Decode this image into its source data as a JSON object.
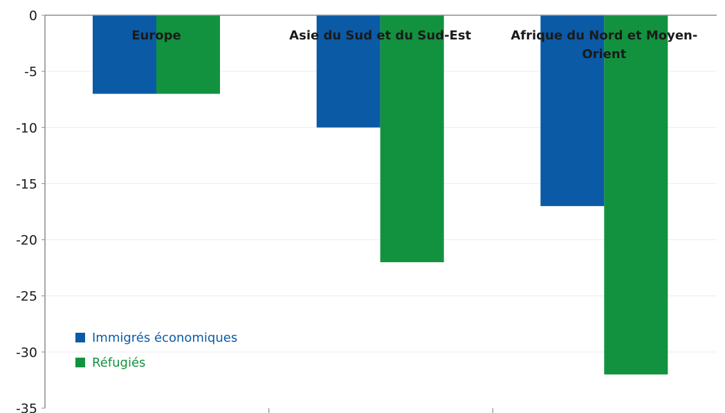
{
  "chart_data": {
    "type": "bar",
    "categories": [
      "Europe",
      "Asie du Sud et du Sud-Est",
      "Afrique du Nord et Moyen-Orient"
    ],
    "category_label_lines": [
      [
        "Europe"
      ],
      [
        "Asie du Sud et du Sud-Est"
      ],
      [
        "Afrique du Nord et Moyen-",
        "Orient"
      ]
    ],
    "series": [
      {
        "name": "Immigrés économiques",
        "values": [
          -7,
          -10,
          -17
        ],
        "color": "#0b5aa6"
      },
      {
        "name": "Réfugiés",
        "values": [
          -7,
          -22,
          -32
        ],
        "color": "#12923f"
      }
    ],
    "ylim": [
      -35,
      0
    ],
    "yticks": [
      0,
      -5,
      -10,
      -15,
      -20,
      -25,
      -30,
      -35
    ],
    "title": "",
    "xlabel": "",
    "ylabel": "",
    "grid": true,
    "legend_position": "bottom-left"
  }
}
